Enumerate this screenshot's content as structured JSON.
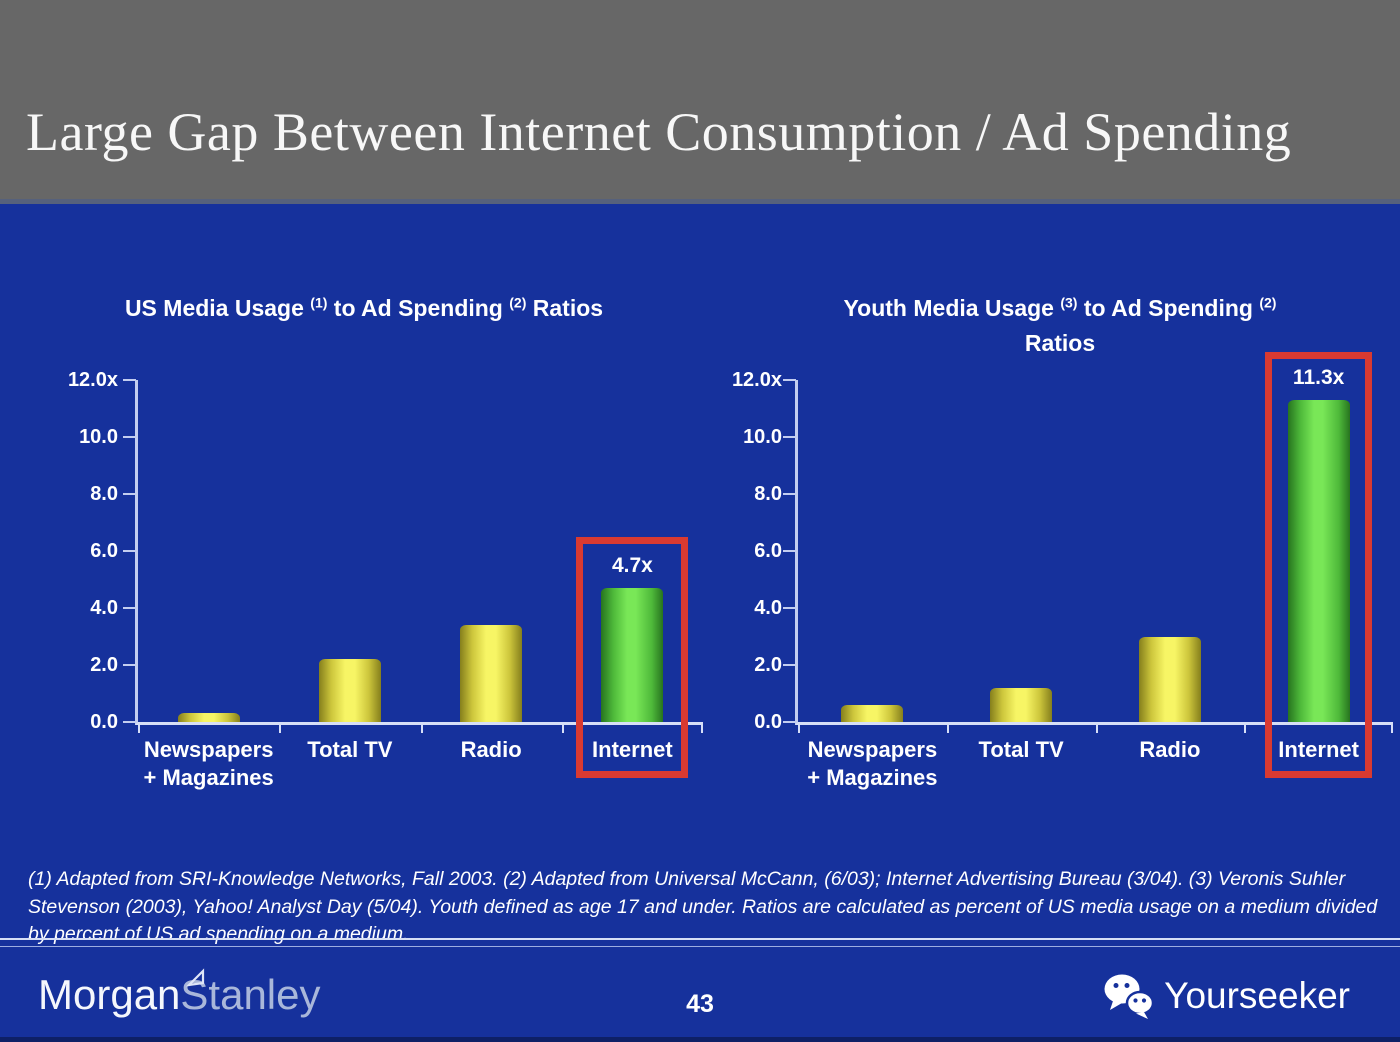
{
  "slide": {
    "title": "Large Gap Between Internet Consumption / Ad Spending",
    "page_number": "43",
    "footnote": "(1) Adapted from SRI-Knowledge Networks, Fall 2003.  (2) Adapted from Universal McCann, (6/03); Internet Advertising Bureau (3/04). (3) Veronis Suhler Stevenson (2003), Yahoo! Analyst Day (5/04).  Youth defined as age 17 and under.  Ratios are calculated as percent of US media usage on a medium divided by percent of US ad spending on a medium.",
    "brand": {
      "part1": "Morgan",
      "part2": "Stanley"
    },
    "watermark": {
      "label": "Yourseeker",
      "icon": "wechat-icon"
    }
  },
  "colors": {
    "header_gray": "#676767",
    "background_blue": "#16319c",
    "bar_yellow": "#f7f565",
    "bar_green": "#79e757",
    "highlight_red": "#d93a31",
    "axis_line": "#c9d4f2",
    "text": "#ffffff"
  },
  "chart_data": [
    {
      "type": "bar",
      "title": "US Media Usage (1) to Ad Spending (2) Ratios",
      "title_lines": [
        [
          {
            "t": "US Media Usage "
          },
          {
            "sup": "(1)"
          },
          {
            "t": " to Ad Spending "
          },
          {
            "sup": "(2)"
          },
          {
            "t": " Ratios"
          }
        ]
      ],
      "categories": [
        "Newspapers\n+ Magazines",
        "Total TV",
        "Radio",
        "Internet"
      ],
      "values": [
        0.3,
        2.2,
        3.4,
        4.7
      ],
      "bar_colors": [
        "yellow",
        "yellow",
        "yellow",
        "green"
      ],
      "data_labels": [
        "",
        "",
        "",
        "4.7x"
      ],
      "y_ticks": [
        "12.0x",
        "10.0",
        "8.0",
        "6.0",
        "4.0",
        "2.0",
        "0.0"
      ],
      "ylim": [
        0,
        12
      ],
      "grid": false,
      "legend": "none",
      "highlight": {
        "index": 3,
        "note": "red box around Internet bar and its label"
      }
    },
    {
      "type": "bar",
      "title": "Youth Media Usage (3) to Ad Spending (2) Ratios",
      "title_lines": [
        [
          {
            "t": "Youth Media Usage "
          },
          {
            "sup": "(3)"
          },
          {
            "t": " to Ad Spending "
          },
          {
            "sup": "(2)"
          }
        ],
        [
          {
            "t": "Ratios"
          }
        ]
      ],
      "categories": [
        "Newspapers\n+ Magazines",
        "Total TV",
        "Radio",
        "Internet"
      ],
      "values": [
        0.6,
        1.2,
        3.0,
        11.3
      ],
      "bar_colors": [
        "yellow",
        "yellow",
        "yellow",
        "green"
      ],
      "data_labels": [
        "",
        "",
        "",
        "11.3x"
      ],
      "y_ticks": [
        "12.0x",
        "10.0",
        "8.0",
        "6.0",
        "4.0",
        "2.0",
        "0.0"
      ],
      "ylim": [
        0,
        12
      ],
      "grid": false,
      "legend": "none",
      "highlight": {
        "index": 3,
        "note": "red box around Internet bar and its label"
      }
    }
  ]
}
